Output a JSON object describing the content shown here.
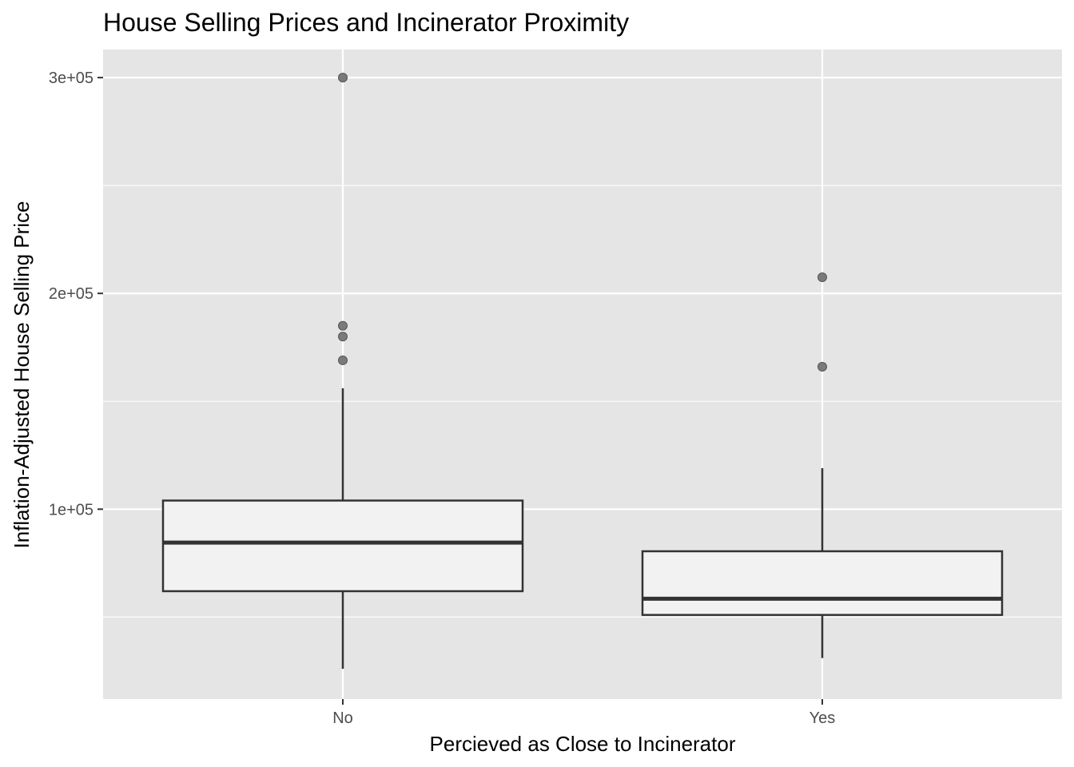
{
  "chart_data": {
    "type": "boxplot",
    "title": "House Selling Prices and Incinerator Proximity",
    "xlabel": "Percieved as Close to Incinerator",
    "ylabel": "Inflation-Adjusted House Selling Price",
    "categories": [
      "No",
      "Yes"
    ],
    "ylim": [
      12000,
      313000
    ],
    "yticks": [
      100000,
      200000,
      300000
    ],
    "ytick_labels": [
      "1e+05",
      "2e+05",
      "3e+05"
    ],
    "yminor": [
      50000,
      150000,
      250000
    ],
    "grid": true,
    "boxes": [
      {
        "category": "No",
        "whisker_low": 26000,
        "q1": 62000,
        "median": 84500,
        "q3": 104000,
        "whisker_high": 156000,
        "outliers": [
          300000,
          185000,
          180000,
          169000
        ]
      },
      {
        "category": "Yes",
        "whisker_low": 31000,
        "q1": 51000,
        "median": 58500,
        "q3": 80500,
        "whisker_high": 119000,
        "outliers": [
          207500,
          166000
        ]
      }
    ],
    "colors": {
      "panel": "#e5e5e5",
      "grid": "#ffffff",
      "box_fill": "#f2f2f2",
      "box_line": "#333333",
      "outlier": "#7a7a7a"
    }
  }
}
